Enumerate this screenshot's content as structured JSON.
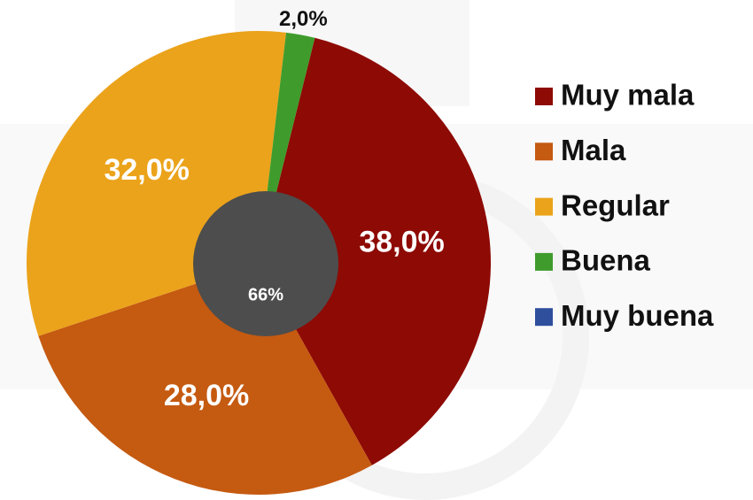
{
  "chart_data": {
    "type": "pie",
    "categories": [
      "Muy mala",
      "Mala",
      "Regular",
      "Buena",
      "Muy buena"
    ],
    "values": [
      38,
      28,
      32,
      2,
      0
    ],
    "value_labels": [
      "38,0%",
      "28,0%",
      "32,0%",
      "2,0%",
      null
    ],
    "colors": [
      "#8e0a05",
      "#c55a11",
      "#eba31b",
      "#3f9c2c",
      "#2f4f9d"
    ],
    "annotation": "66%",
    "legend": "right"
  }
}
